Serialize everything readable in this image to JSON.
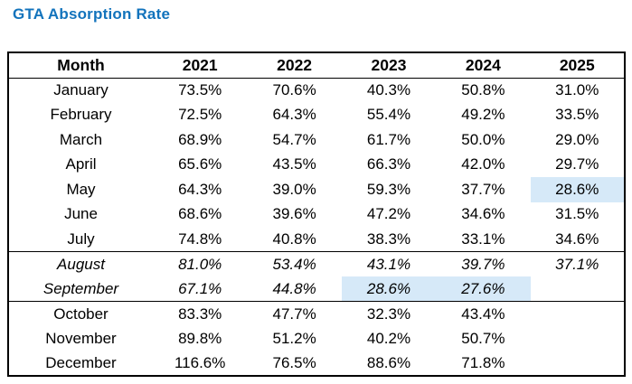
{
  "title": {
    "text": "GTA Absorption Rate"
  },
  "colors": {
    "title": "#1273BC",
    "highlight": "#D6E9F8",
    "border": "#000000",
    "text": "#000000",
    "background": "#FFFFFF"
  },
  "chart_data": {
    "type": "table",
    "title": "GTA Absorption Rate",
    "columns": [
      "Month",
      "2021",
      "2022",
      "2023",
      "2024",
      "2025"
    ],
    "rows": [
      [
        "January",
        "73.5%",
        "70.6%",
        "40.3%",
        "50.8%",
        "31.0%"
      ],
      [
        "February",
        "72.5%",
        "64.3%",
        "55.4%",
        "49.2%",
        "33.5%"
      ],
      [
        "March",
        "68.9%",
        "54.7%",
        "61.7%",
        "50.0%",
        "29.0%"
      ],
      [
        "April",
        "65.6%",
        "43.5%",
        "66.3%",
        "42.0%",
        "29.7%"
      ],
      [
        "May",
        "64.3%",
        "39.0%",
        "59.3%",
        "37.7%",
        "28.6%"
      ],
      [
        "June",
        "68.6%",
        "39.6%",
        "47.2%",
        "34.6%",
        "31.5%"
      ],
      [
        "July",
        "74.8%",
        "40.8%",
        "38.3%",
        "33.1%",
        "34.6%"
      ],
      [
        "August",
        "81.0%",
        "53.4%",
        "43.1%",
        "39.7%",
        "37.1%"
      ],
      [
        "September",
        "67.1%",
        "44.8%",
        "28.6%",
        "27.6%",
        ""
      ],
      [
        "October",
        "83.3%",
        "47.7%",
        "32.3%",
        "43.4%",
        ""
      ],
      [
        "November",
        "89.8%",
        "51.2%",
        "40.2%",
        "50.7%",
        ""
      ],
      [
        "December",
        "116.6%",
        "76.5%",
        "88.6%",
        "71.8%",
        ""
      ]
    ],
    "italic_rows": [
      "August",
      "September"
    ],
    "highlighted_cells": [
      {
        "row": "May",
        "column": "2025"
      },
      {
        "row": "September",
        "column": "2023"
      },
      {
        "row": "September",
        "column": "2024"
      }
    ],
    "separator_lines_after_rows": [
      "July",
      "September"
    ]
  }
}
